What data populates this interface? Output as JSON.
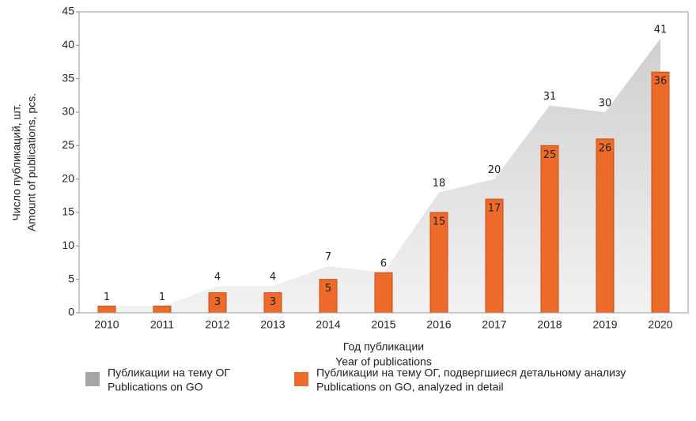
{
  "chart_data": {
    "type": "bar",
    "categories": [
      "2010",
      "2011",
      "2012",
      "2013",
      "2014",
      "2015",
      "2016",
      "2017",
      "2018",
      "2019",
      "2020"
    ],
    "series": [
      {
        "name": [
          "Публикации на тему ОГ",
          "Publications on GO"
        ],
        "color": "#a6a6a6",
        "kind": "area",
        "values": [
          1,
          1,
          4,
          4,
          7,
          6,
          18,
          20,
          31,
          30,
          41
        ]
      },
      {
        "name": [
          "Публикации на тему ОГ, подвергшиеся детальному анализу",
          "Publications on GO, analyzed in detail"
        ],
        "color": "#ee6a2a",
        "kind": "bar",
        "values": [
          1,
          1,
          3,
          3,
          5,
          6,
          15,
          17,
          25,
          26,
          36
        ],
        "value_labels": [
          null,
          null,
          "3",
          "3",
          "5",
          null,
          "15",
          "17",
          "25",
          "26",
          "36"
        ]
      }
    ],
    "y_label": [
      "Число публикаций, шт.",
      "Amount of publications, pcs."
    ],
    "x_label": [
      "Год публикации",
      "Year of publications"
    ],
    "ylim": [
      0,
      45
    ],
    "yticks": [
      0,
      5,
      10,
      15,
      20,
      25,
      30,
      35,
      40,
      45
    ]
  }
}
